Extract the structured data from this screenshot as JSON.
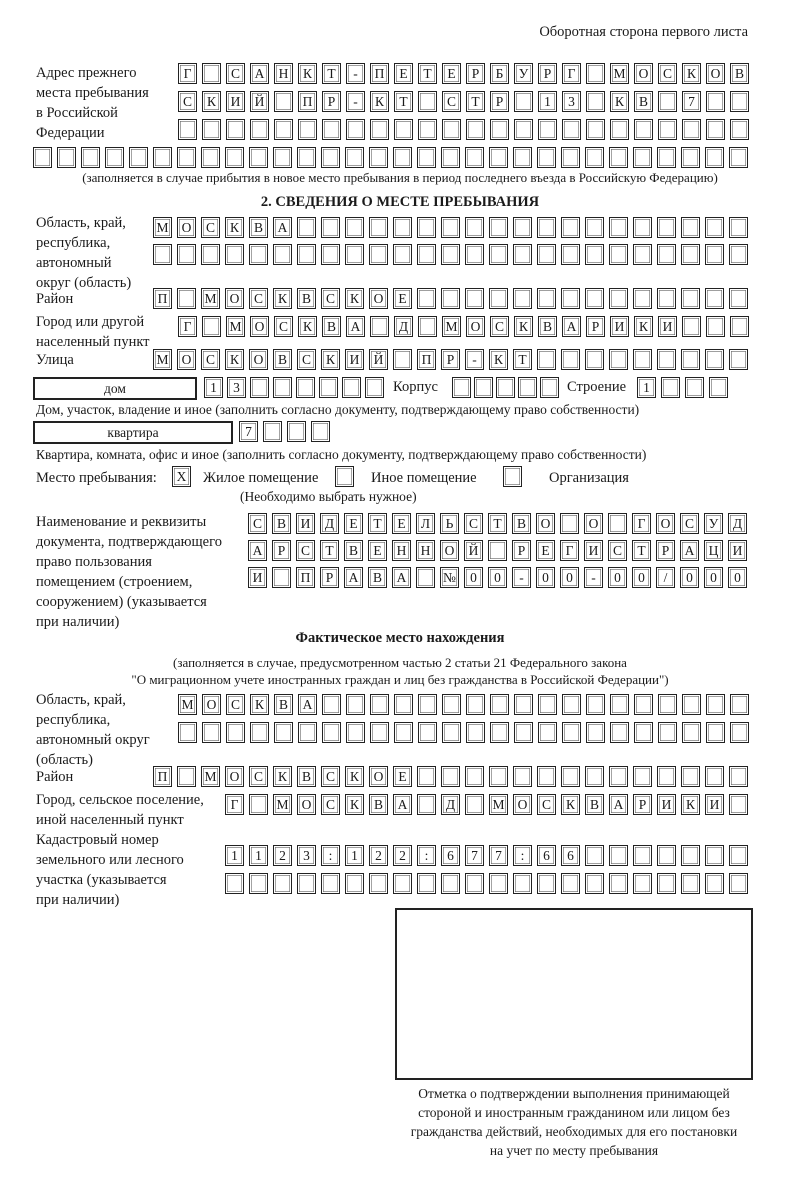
{
  "header": "Оборотная сторона первого листа",
  "prev_address": {
    "label": [
      "Адрес прежнего",
      "места пребывания",
      "в Российской",
      "Федерации"
    ],
    "lines": [
      [
        "Г",
        "",
        "С",
        "А",
        "Н",
        "К",
        "Т",
        "-",
        "П",
        "Е",
        "Т",
        "Е",
        "Р",
        "Б",
        "У",
        "Р",
        "Г",
        "",
        "М",
        "О",
        "С",
        "К",
        "О",
        "В"
      ],
      [
        "С",
        "К",
        "И",
        "Й",
        "",
        "П",
        "Р",
        "-",
        "К",
        "Т",
        "",
        "С",
        "Т",
        "Р",
        "",
        "1",
        "3",
        "",
        "К",
        "В",
        "",
        "7"
      ],
      [],
      []
    ],
    "note": "(заполняется в случае прибытия в новое место пребывания в период последнего въезда в Российскую Федерацию)"
  },
  "section2": {
    "title": "2. СВЕДЕНИЯ О МЕСТЕ ПРЕБЫВАНИЯ",
    "region_label": [
      "Область, край,",
      "республика,",
      "автономный",
      "округ (область)"
    ],
    "region": [
      [
        "М",
        "О",
        "С",
        "К",
        "В",
        "А"
      ],
      []
    ],
    "district_label": "Район",
    "district": [
      "П",
      "",
      "М",
      "О",
      "С",
      "К",
      "В",
      "С",
      "К",
      "О",
      "Е"
    ],
    "city_label": [
      "Город или другой",
      "населенный пункт"
    ],
    "city": [
      "Г",
      "",
      "М",
      "О",
      "С",
      "К",
      "В",
      "А",
      "",
      "Д",
      "",
      "М",
      "О",
      "С",
      "К",
      "В",
      "А",
      "Р",
      "И",
      "К",
      "И"
    ],
    "street_label": "Улица",
    "street": [
      "М",
      "О",
      "С",
      "К",
      "О",
      "В",
      "С",
      "К",
      "И",
      "Й",
      "",
      "П",
      "Р",
      "-",
      "К",
      "Т"
    ],
    "house_type": "дом",
    "house": [
      "1",
      "3"
    ],
    "korpus_label": "Корпус",
    "korpus": [],
    "building_label": "Строение",
    "building": [
      "1"
    ],
    "house_note": "Дом, участок, владение и иное (заполнить согласно документу, подтверждающему право собственности)",
    "flat_type": "квартира",
    "flat": [
      "7"
    ],
    "flat_note": "Квартира, комната, офис и иное (заполнить согласно документу, подтверждающему право собственности)",
    "stay_place_label": "Место пребывания:",
    "options": [
      {
        "label": "Жилое помещение",
        "mark": "Х"
      },
      {
        "label": "Иное помещение",
        "mark": ""
      },
      {
        "label": "Организация",
        "mark": ""
      }
    ],
    "choose_note": "(Необходимо выбрать нужное)",
    "doc_label": [
      "Наименование и реквизиты",
      "документа, подтверждающего",
      "право пользования",
      "помещением (строением,",
      "сооружением) (указывается",
      "при наличии)"
    ],
    "doc": [
      [
        "С",
        "В",
        "И",
        "Д",
        "Е",
        "Т",
        "Е",
        "Л",
        "Ь",
        "С",
        "Т",
        "В",
        "О",
        "",
        "О",
        "",
        "Г",
        "О",
        "С",
        "У",
        "Д"
      ],
      [
        "А",
        "Р",
        "С",
        "Т",
        "В",
        "Е",
        "Н",
        "Н",
        "О",
        "Й",
        "",
        "Р",
        "Е",
        "Г",
        "И",
        "С",
        "Т",
        "Р",
        "А",
        "Ц",
        "И"
      ],
      [
        "И",
        "",
        "П",
        "Р",
        "А",
        "В",
        "А",
        "",
        "№",
        "0",
        "0",
        "-",
        "0",
        "0",
        "-",
        "0",
        "0",
        "/",
        "0",
        "0",
        "0"
      ]
    ]
  },
  "actual": {
    "title": "Фактическое место нахождения",
    "note": [
      "(заполняется в случае, предусмотренном частью 2 статьи 21 Федерального закона",
      "\"О миграционном учете иностранных граждан и лиц без гражданства в Российской Федерации\")"
    ],
    "region_label": [
      "Область, край,",
      "республика,",
      "автономный округ",
      "(область)"
    ],
    "region": [
      [
        "М",
        "О",
        "С",
        "К",
        "В",
        "А"
      ],
      []
    ],
    "district_label": "Район",
    "district": [
      "П",
      "",
      "М",
      "О",
      "С",
      "К",
      "В",
      "С",
      "К",
      "О",
      "Е"
    ],
    "city_label": [
      "Город, сельское поселение,",
      "иной населенный пункт"
    ],
    "city": [
      "Г",
      "",
      "М",
      "О",
      "С",
      "К",
      "В",
      "А",
      "",
      "Д",
      "",
      "М",
      "О",
      "С",
      "К",
      "В",
      "А",
      "Р",
      "И",
      "К",
      "И"
    ],
    "cadastral_label": [
      "Кадастровый номер",
      "земельного или лесного",
      "участка (указывается",
      "при наличии)"
    ],
    "cadastral": [
      [
        "1",
        "1",
        "2",
        "3",
        ":",
        "1",
        "2",
        "2",
        ":",
        "6",
        "7",
        "7",
        ":",
        "6",
        "6"
      ],
      []
    ]
  },
  "confirmation_caption": [
    "Отметка о подтверждении выполнения принимающей",
    "стороной и иностранным гражданином или лицом без",
    "гражданства действий, необходимых для его постановки",
    "на учет по месту пребывания"
  ]
}
